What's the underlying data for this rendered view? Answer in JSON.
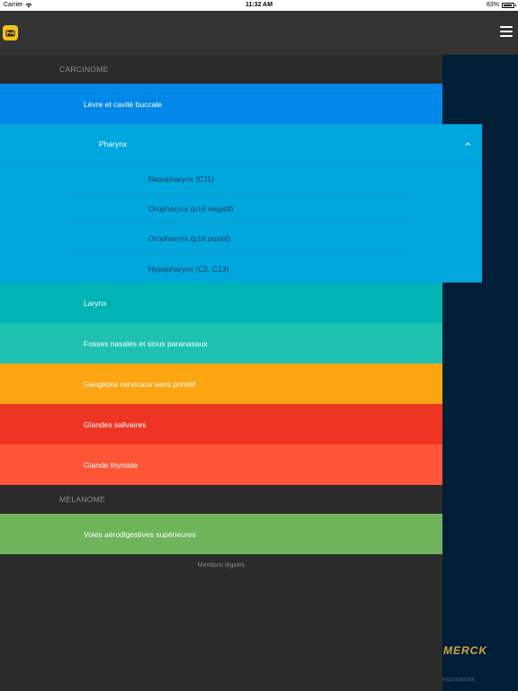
{
  "status_bar": {
    "carrier": "Carrier",
    "time": "11:32 AM",
    "battery": "83%"
  },
  "nav": {
    "logo_icon": "m-logo-icon",
    "menu_icon": "hamburger-menu-icon"
  },
  "sections": {
    "carcinome": "CARCINOME",
    "melanome": "MÉLANOME"
  },
  "items": {
    "levre": "Lèvre et cavité buccale",
    "pharynx": "Pharynx",
    "pharynx_sub": [
      "Nasopharynx (C11)",
      "Oropharynx (p16 négatif)",
      "Oropharynx (p16 positif)",
      "Hypopharynx (C2, C13)"
    ],
    "larynx": "Larynx",
    "fosses": "Fosses nasales et sinus paranasaux",
    "ganglions": "Ganglions cervicaux sans primitif",
    "glandes_salivaires": "Glandes salivaires",
    "glande_thyroide": "Glande thyroide",
    "voies": "Voies aérodigestives supérieures"
  },
  "colors": {
    "levre": "#0288e8",
    "pharynx": "#00a7df",
    "larynx": "#00b3b5",
    "fosses": "#1fc1b1",
    "ganglions": "#fda512",
    "glandes_salivaires": "#ee3523",
    "glande_thyroide": "#ff5537",
    "voies": "#6fb45a",
    "right_panel": "#001e36"
  },
  "footer": {
    "mentions": "Mentions légales",
    "brand": "MERCK",
    "code": "HNS/2018/0308"
  }
}
